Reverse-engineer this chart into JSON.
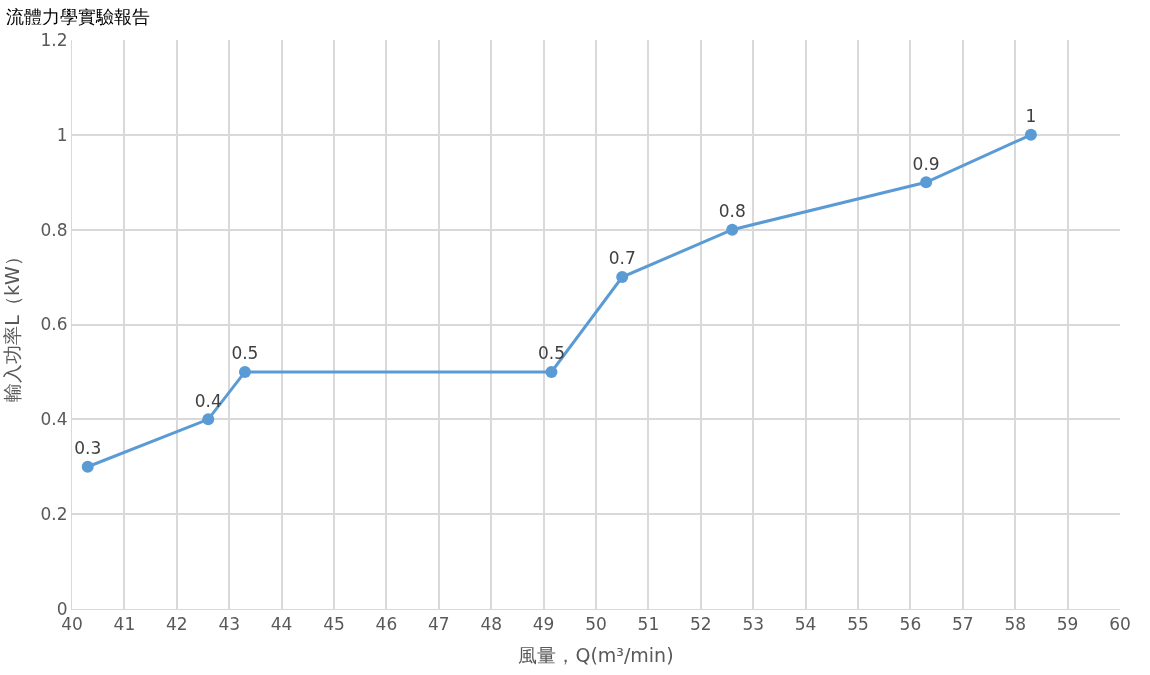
{
  "chart_data": {
    "type": "line",
    "title": "流體力學實驗報告",
    "xlabel": "風量，Q(m³/min)",
    "ylabel": "輸入功率L（kW）",
    "x": [
      40.3,
      42.6,
      43.3,
      49.15,
      50.5,
      52.6,
      56.3,
      58.3
    ],
    "series": [
      {
        "color": "#5b9bd5",
        "values": [
          0.3,
          0.4,
          0.5,
          0.5,
          0.7,
          0.8,
          0.9,
          1
        ]
      }
    ],
    "xlim": [
      40,
      60
    ],
    "xticks": [
      40,
      41,
      42,
      43,
      44,
      45,
      46,
      47,
      48,
      49,
      50,
      51,
      52,
      53,
      54,
      55,
      56,
      57,
      58,
      59,
      60
    ],
    "ylim": [
      0,
      1.2
    ],
    "yticks": [
      0,
      0.2,
      0.4,
      0.6,
      0.8,
      1,
      1.2
    ],
    "grid": true,
    "marker": "circle",
    "line_style": "solid",
    "data_labels": true
  }
}
